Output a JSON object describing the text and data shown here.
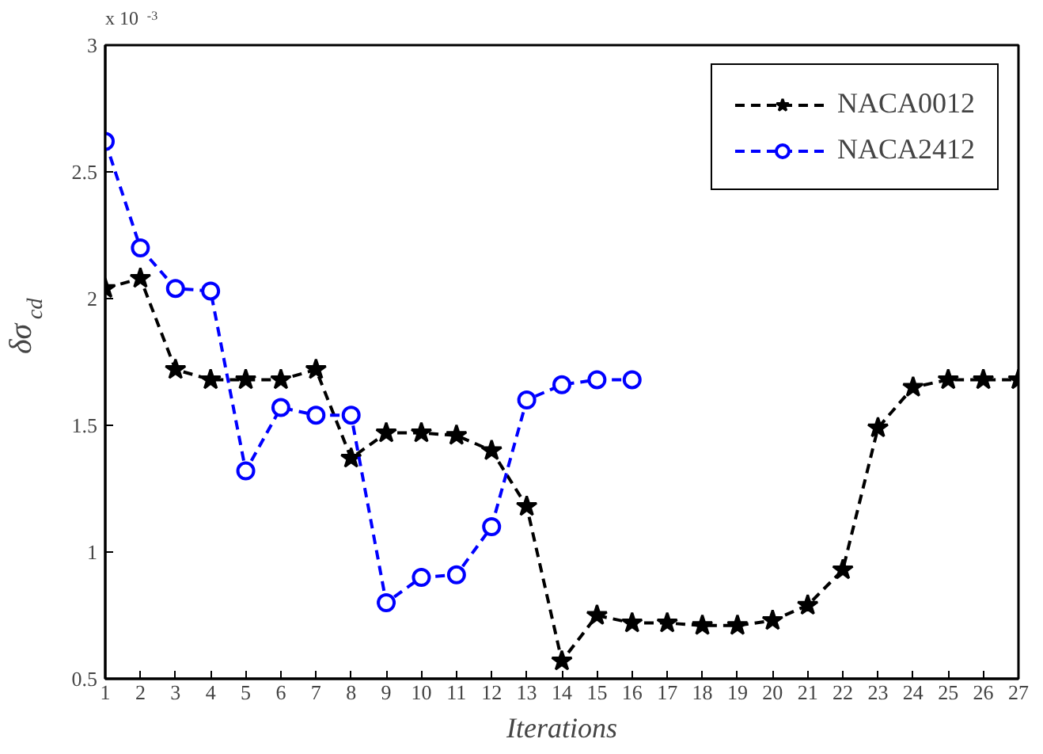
{
  "chart_data": {
    "type": "line",
    "xlabel": "Iterations",
    "ylabel": "δσ$_{cd}$",
    "annotations": [
      "x 10$^{-3}$"
    ],
    "x": [
      1,
      2,
      3,
      4,
      5,
      6,
      7,
      8,
      9,
      10,
      11,
      12,
      13,
      14,
      15,
      16,
      17,
      18,
      19,
      20,
      21,
      22,
      23,
      24,
      25,
      26,
      27
    ],
    "series": [
      {
        "name": "NACA0012",
        "color": "#000000",
        "marker": "star",
        "values": [
          2.04,
          2.08,
          1.72,
          1.68,
          1.68,
          1.68,
          1.72,
          1.37,
          1.47,
          1.47,
          1.46,
          1.4,
          1.18,
          0.57,
          0.75,
          0.72,
          0.72,
          0.71,
          0.71,
          0.73,
          0.79,
          0.93,
          1.49,
          1.65,
          1.68,
          1.68,
          1.68
        ]
      },
      {
        "name": "NACA2412",
        "color": "#0000ff",
        "marker": "circle",
        "values": [
          2.62,
          2.2,
          2.04,
          2.03,
          1.32,
          1.57,
          1.54,
          1.54,
          0.8,
          0.9,
          0.91,
          1.1,
          1.6,
          1.66,
          1.68,
          1.68,
          null,
          null,
          null,
          null,
          null,
          null,
          null,
          null,
          null,
          null,
          null
        ]
      }
    ],
    "xlim": [
      1,
      27
    ],
    "xticks": [
      1,
      2,
      3,
      4,
      5,
      6,
      7,
      8,
      9,
      10,
      11,
      12,
      13,
      14,
      15,
      16,
      17,
      18,
      19,
      20,
      21,
      22,
      23,
      24,
      25,
      26,
      27
    ],
    "ylim": [
      0.5,
      3
    ],
    "yticks": [
      0.5,
      1,
      1.5,
      2,
      2.5,
      3
    ],
    "grid": false,
    "legend": "top right",
    "line_style": "dashed"
  }
}
